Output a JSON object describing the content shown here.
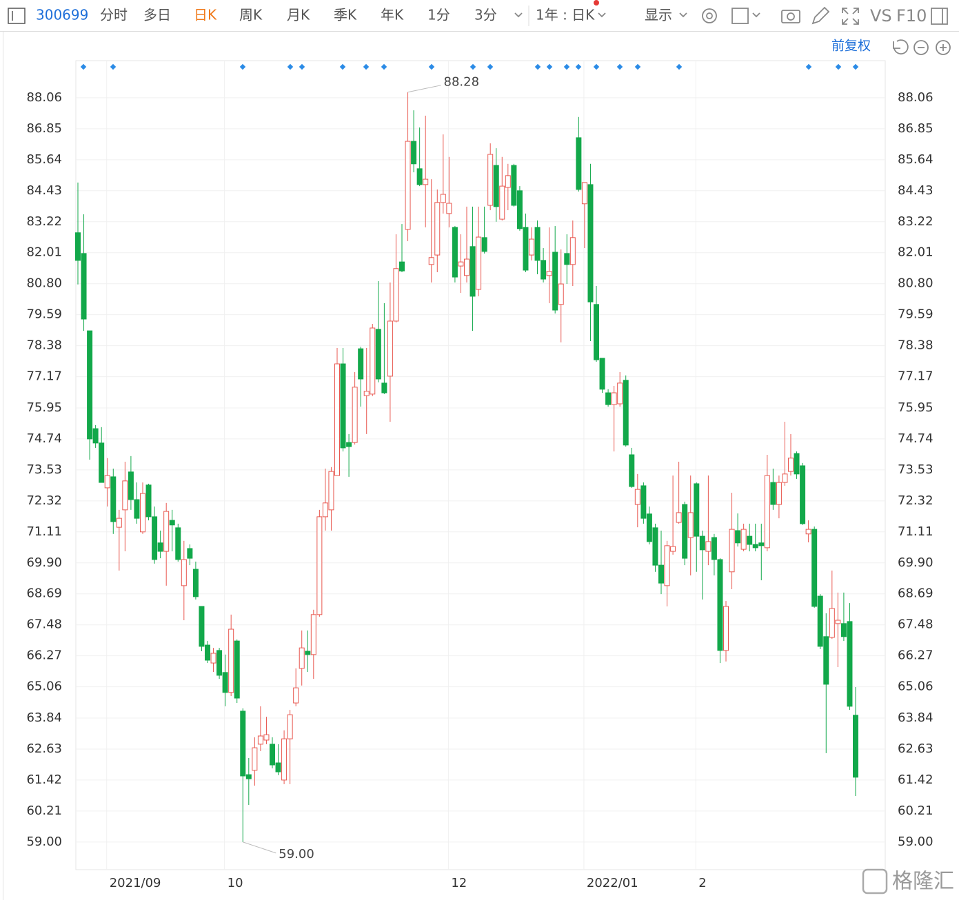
{
  "toolbar": {
    "code": "300699",
    "periods": [
      "分时",
      "多日",
      "日K",
      "周K",
      "月K",
      "季K",
      "年K",
      "1分",
      "3分"
    ],
    "range": "1年 : 日K",
    "display": "显示",
    "vs": "VS",
    "f10": "F10"
  },
  "adjust": "前复权",
  "watermark": "格隆汇",
  "chart_data": {
    "type": "candlestick",
    "up_color": "#e8574f",
    "down_color": "#12a84a",
    "grid": true,
    "ylim": [
      57.92,
      89.51
    ],
    "yticks": [
      {
        "value": 59,
        "label": "59.00"
      },
      60.21,
      61.42,
      62.63,
      63.84,
      65.06,
      66.27,
      67.48,
      68.69,
      {
        "value": 69.9,
        "label": "69.90"
      },
      71.11,
      72.32,
      73.53,
      74.74,
      75.95,
      77.17,
      78.38,
      79.59,
      {
        "value": 80.8,
        "label": "80.80"
      },
      82.01,
      83.22,
      84.43,
      85.64,
      86.85,
      88.06
    ],
    "annotations": [
      {
        "text": "88.28"
      },
      {
        "text": "59.00"
      }
    ],
    "categories": [
      null,
      null,
      null,
      null,
      null,
      "2021/09",
      null,
      null,
      null,
      null,
      null,
      null,
      null,
      null,
      null,
      null,
      null,
      null,
      null,
      null,
      null,
      null,
      null,
      null,
      null,
      "10",
      null,
      null,
      null,
      null,
      null,
      null,
      null,
      null,
      null,
      null,
      null,
      null,
      null,
      null,
      null,
      null,
      null,
      null,
      null,
      null,
      null,
      null,
      null,
      null,
      null,
      null,
      null,
      null,
      null,
      null,
      null,
      null,
      null,
      null,
      null,
      null,
      null,
      "12",
      null,
      null,
      null,
      null,
      null,
      null,
      null,
      null,
      null,
      null,
      null,
      null,
      null,
      null,
      null,
      null,
      null,
      null,
      null,
      null,
      null,
      null,
      "2022/01",
      null,
      null,
      null,
      null,
      null,
      null,
      null,
      null,
      null,
      null,
      null,
      null,
      null,
      null,
      null,
      null,
      null,
      null,
      "2",
      null,
      null,
      null,
      null,
      null,
      null,
      null,
      null,
      null,
      null,
      null,
      null,
      null,
      null,
      null,
      null,
      null,
      null,
      null,
      null,
      null,
      null,
      null,
      null,
      null,
      null,
      null
    ],
    "open": [
      82.79,
      81.98,
      78.96,
      75.14,
      74.58,
      72.83,
      73.26,
      71.29,
      71.97,
      73.45,
      72.37,
      71.11,
      72.94,
      71.7,
      70.68,
      70.35,
      71.56,
      71.27,
      69.01,
      70.46,
      69.65,
      68.2,
      66.69,
      65.99,
      66.48,
      65.62,
      64.84,
      66.85,
      64.11,
      61.63,
      61.8,
      62.82,
      62.98,
      62.82,
      62.09,
      61.42,
      63.03,
      64.43,
      65.78,
      66.45,
      66.32,
      67.88,
      71.7,
      71.97,
      73.31,
      77.67,
      74.6,
      74.6,
      78.26,
      76.43,
      76.49,
      79.02,
      76.92,
      77.19,
      79.34,
      81.65,
      82.92,
      86.36,
      85.29,
      84.67,
      81.55,
      81.92,
      83.97,
      83.54,
      83.0,
      81.49,
      81.12,
      82.25,
      80.58,
      82.6,
      83.86,
      85.42,
      83.32,
      84.56,
      85.42,
      84.43,
      83.0,
      81.92,
      83.0,
      81.71,
      81.12,
      82.03,
      79.99,
      81.98,
      81.55,
      86.5,
      83.92,
      84.67,
      79.99,
      77.89,
      76.54,
      76.08,
      76.11,
      77.03,
      74.12,
      72.18,
      72.91,
      71.81,
      71.27,
      69.81,
      69.01,
      70.35,
      71.48,
      72.18,
      70.89,
      72.99,
      70.94,
      70.35,
      70.89,
      70.03,
      66.48,
      69.55,
      71.16,
      70.43,
      70.94,
      70.62,
      70.68,
      70.49,
      73.04,
      72.18,
      73.04,
      73.47,
      74.17,
      73.69,
      71.03,
      71.21,
      68.6,
      67.02,
      66.99,
      67.53,
      67.53,
      67.61,
      63.95
    ],
    "high": [
      84.75,
      83.51,
      78.96,
      75.28,
      75.2,
      73.99,
      73.58,
      71.97,
      73.85,
      74.07,
      73.04,
      73.04,
      72.99,
      72.1,
      71.16,
      72.24,
      71.97,
      71.43,
      70.76,
      70.62,
      69.95,
      68.2,
      66.85,
      66.58,
      66.58,
      66.32,
      67.88,
      66.91,
      64.22,
      62.28,
      63.09,
      64.3,
      63.89,
      63.09,
      62.82,
      63.36,
      64.16,
      65.78,
      67.26,
      67.26,
      68.07,
      71.97,
      73.58,
      73.64,
      78.29,
      78.29,
      74.93,
      77.35,
      78.34,
      78.29,
      79.23,
      80.9,
      80.04,
      80.85,
      82.73,
      83.13,
      88.28,
      87.57,
      86.9,
      87.36,
      84.88,
      84.48,
      86.63,
      85.75,
      83.05,
      82.73,
      83.81,
      83.81,
      83.81,
      83.81,
      86.28,
      86.09,
      85.75,
      85.48,
      85.48,
      84.61,
      83.54,
      83.0,
      83.27,
      82.19,
      83.0,
      83.05,
      82.14,
      82.73,
      83.27,
      87.31,
      84.75,
      85.48,
      80.71,
      77.89,
      76.68,
      76.81,
      77.35,
      77.22,
      74.39,
      73.37,
      73.04,
      72.1,
      71.43,
      71.16,
      70.76,
      73.31,
      73.85,
      72.29,
      73.31,
      73.04,
      71.16,
      73.31,
      71.03,
      70.08,
      68.41,
      72.64,
      71.83,
      71.43,
      71.43,
      71.43,
      71.43,
      74.12,
      73.58,
      73.31,
      75.41,
      74.93,
      74.25,
      73.8,
      71.56,
      71.32,
      68.68,
      67.93,
      69.6,
      68.74,
      68.74,
      68.33,
      65.05
    ],
    "low": [
      80.77,
      78.96,
      73.93,
      74.39,
      73.04,
      72.1,
      71.03,
      69.6,
      70.35,
      71.97,
      71.43,
      71.03,
      71.56,
      69.87,
      70.08,
      69.01,
      70.35,
      69.95,
      67.66,
      69.81,
      68.47,
      66.45,
      65.99,
      65.64,
      65.37,
      64.3,
      64.7,
      64.43,
      59.0,
      60.45,
      61.2,
      62.55,
      62.82,
      61.88,
      61.61,
      61.26,
      61.26,
      64.3,
      65.11,
      65.64,
      65.37,
      67.8,
      71.16,
      71.16,
      73.31,
      74.25,
      73.26,
      74.52,
      76.0,
      74.93,
      76.41,
      76.95,
      76.49,
      75.41,
      79.29,
      81.25,
      82.46,
      85.15,
      84.61,
      83.0,
      80.85,
      81.25,
      83.54,
      83.0,
      80.85,
      80.44,
      80.85,
      78.96,
      80.31,
      81.98,
      83.67,
      83.22,
      83.27,
      83.67,
      83.81,
      82.87,
      81.25,
      81.71,
      81.17,
      80.85,
      80.04,
      79.64,
      78.51,
      80.79,
      80.71,
      84.4,
      82.19,
      78.56,
      77.75,
      76.54,
      76.0,
      74.25,
      76.0,
      74.44,
      72.83,
      71.29,
      71.43,
      70.62,
      69.55,
      68.68,
      68.2,
      70.22,
      71.43,
      69.81,
      69.41,
      69.55,
      68.47,
      69.81,
      69.41,
      65.99,
      66.05,
      68.87,
      70.54,
      70.35,
      70.35,
      70.35,
      69.22,
      70.35,
      71.97,
      71.64,
      72.91,
      73.31,
      73.18,
      71.38,
      70.7,
      68.15,
      66.53,
      62.47,
      66.93,
      65.83,
      66.85,
      64.16,
      60.8
    ],
    "close": [
      81.71,
      79.42,
      74.74,
      74.58,
      73.04,
      73.31,
      71.51,
      71.64,
      73.1,
      72.37,
      71.64,
      72.61,
      71.7,
      70.03,
      70.35,
      71.91,
      71.38,
      70.03,
      70.03,
      70.08,
      68.58,
      66.64,
      66.1,
      66.37,
      65.51,
      64.84,
      67.31,
      64.62,
      61.58,
      61.47,
      62.68,
      63.14,
      63.19,
      62.01,
      61.74,
      63.03,
      63.97,
      65.02,
      66.58,
      66.32,
      67.88,
      71.7,
      72.24,
      73.47,
      77.67,
      74.39,
      74.44,
      76.76,
      77.08,
      76.6,
      79.07,
      77.08,
      76.54,
      79.34,
      81.39,
      81.3,
      86.36,
      85.48,
      84.67,
      84.88,
      81.82,
      83.97,
      84.29,
      83.94,
      81.06,
      81.65,
      81.76,
      80.31,
      82.62,
      82.06,
      85.85,
      83.81,
      84.61,
      85.02,
      83.86,
      82.95,
      81.33,
      82.54,
      81.71,
      80.98,
      81.28,
      79.77,
      80.79,
      81.55,
      82.6,
      84.48,
      84.75,
      80.09,
      77.83,
      76.68,
      76.08,
      76.54,
      76.92,
      74.5,
      72.88,
      72.77,
      71.64,
      70.73,
      69.81,
      69.11,
      70.57,
      70.54,
      71.86,
      70.08,
      71.86,
      70.94,
      70.41,
      70.73,
      70.03,
      66.48,
      68.2,
      71.21,
      70.68,
      71.21,
      70.62,
      70.49,
      70.57,
      73.31,
      72.18,
      73.04,
      73.37,
      73.99,
      73.37,
      71.43,
      71.21,
      68.2,
      66.64,
      65.16,
      68.12,
      67.66,
      67.02,
      64.3,
      61.53
    ]
  }
}
